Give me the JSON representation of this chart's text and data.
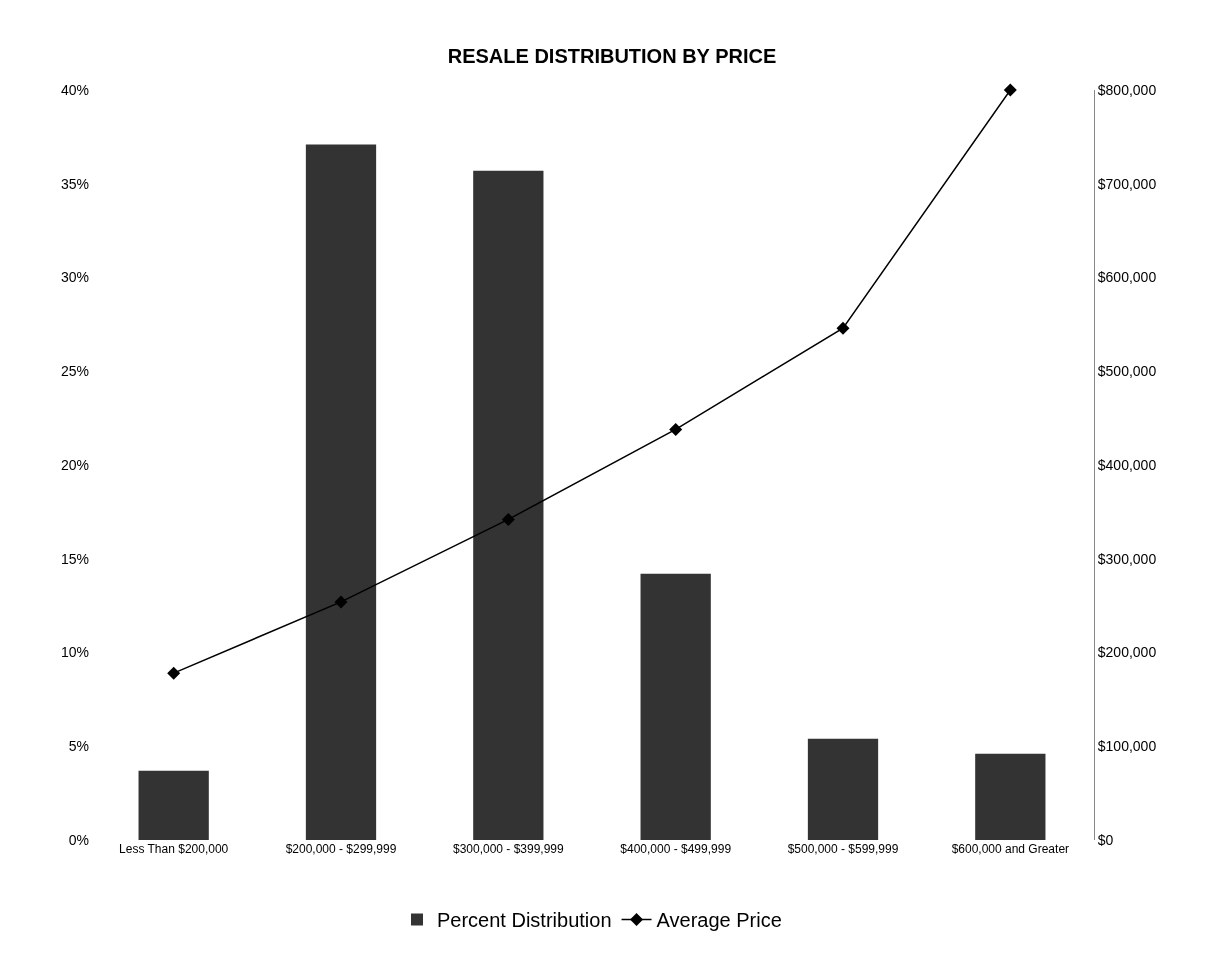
{
  "chart_data": {
    "type": "bar",
    "title": "RESALE DISTRIBUTION BY PRICE",
    "categories": [
      "Less Than $200,000",
      "$200,000 - $299,999",
      "$300,000 - $399,999",
      "$400,000 - $499,999",
      "$500,000 - $599,999",
      "$600,000 and Greater"
    ],
    "series": [
      {
        "name": "Percent Distribution",
        "color": "#333333",
        "values": [
          3.7,
          37.1,
          35.7,
          14.2,
          5.4,
          4.6
        ]
      },
      {
        "name": "Average Price",
        "type": "line",
        "axis": "y2",
        "color": "#000000",
        "marker": "diamond",
        "values": [
          178000,
          254000,
          342000,
          438000,
          546000,
          800000
        ]
      }
    ],
    "ylim": [
      0,
      40
    ],
    "yticks": [
      {
        "value": 0,
        "label": "0%"
      },
      {
        "value": 5,
        "label": "5%"
      },
      {
        "value": 10,
        "label": "10%"
      },
      {
        "value": 15,
        "label": "15%"
      },
      {
        "value": 20,
        "label": "20%"
      },
      {
        "value": 25,
        "label": "25%"
      },
      {
        "value": 30,
        "label": "30%"
      },
      {
        "value": 35,
        "label": "35%"
      },
      {
        "value": 40,
        "label": "40%"
      }
    ],
    "y2lim": [
      0,
      800000
    ],
    "y2ticks": [
      {
        "value": 0,
        "label": "$0"
      },
      {
        "value": 100000,
        "label": "$100,000"
      },
      {
        "value": 200000,
        "label": "$200,000"
      },
      {
        "value": 300000,
        "label": "$300,000"
      },
      {
        "value": 400000,
        "label": "$400,000"
      },
      {
        "value": 500000,
        "label": "$500,000"
      },
      {
        "value": 600000,
        "label": "$600,000"
      },
      {
        "value": 700000,
        "label": "$700,000"
      },
      {
        "value": 800000,
        "label": "$800,000"
      }
    ],
    "legend": "bottom"
  }
}
